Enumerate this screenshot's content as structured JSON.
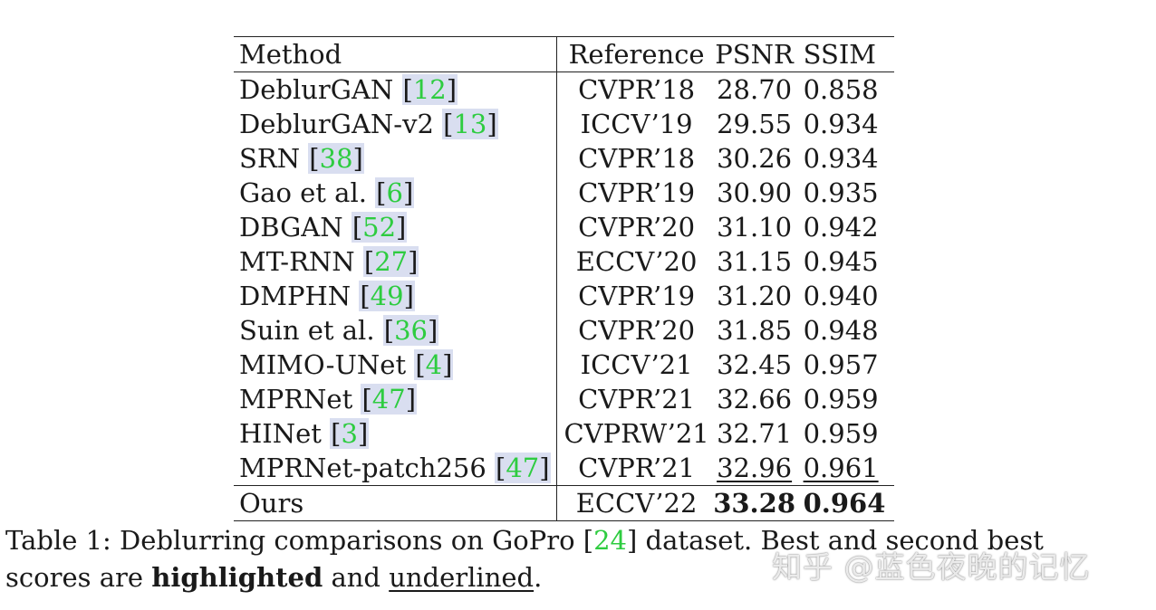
{
  "table": {
    "headers": {
      "method": "Method",
      "reference": "Reference",
      "psnr": "PSNR",
      "ssim": "SSIM"
    },
    "rows": [
      {
        "method": "DeblurGAN",
        "cite": "12",
        "reference": "CVPR’18",
        "psnr": "28.70",
        "ssim": "0.858"
      },
      {
        "method": "DeblurGAN-v2",
        "cite": "13",
        "reference": "ICCV’19",
        "psnr": "29.55",
        "ssim": "0.934"
      },
      {
        "method": "SRN",
        "cite": "38",
        "reference": "CVPR’18",
        "psnr": "30.26",
        "ssim": "0.934"
      },
      {
        "method": "Gao et al.",
        "cite": "6",
        "reference": "CVPR’19",
        "psnr": "30.90",
        "ssim": "0.935"
      },
      {
        "method": "DBGAN",
        "cite": "52",
        "reference": "CVPR’20",
        "psnr": "31.10",
        "ssim": "0.942"
      },
      {
        "method": "MT-RNN",
        "cite": "27",
        "reference": "ECCV’20",
        "psnr": "31.15",
        "ssim": "0.945"
      },
      {
        "method": "DMPHN",
        "cite": "49",
        "reference": "CVPR’19",
        "psnr": "31.20",
        "ssim": "0.940"
      },
      {
        "method": "Suin et al.",
        "cite": "36",
        "reference": "CVPR’20",
        "psnr": "31.85",
        "ssim": "0.948"
      },
      {
        "method": "MIMO-UNet",
        "cite": "4",
        "reference": "ICCV’21",
        "psnr": "32.45",
        "ssim": "0.957"
      },
      {
        "method": "MPRNet",
        "cite": "47",
        "reference": "CVPR’21",
        "psnr": "32.66",
        "ssim": "0.959"
      },
      {
        "method": "HINet",
        "cite": "3",
        "reference": "CVPRW’21",
        "psnr": "32.71",
        "ssim": "0.959"
      },
      {
        "method": "MPRNet-patch256",
        "cite": "47",
        "reference": "CVPR’21",
        "psnr": "32.96",
        "ssim": "0.961"
      }
    ],
    "ours": {
      "method": "Ours",
      "reference": "ECCV’22",
      "psnr": "33.28",
      "ssim": "0.964"
    }
  },
  "caption": {
    "part1": "Table 1: Deblurring comparisons on GoPro ",
    "cite": "24",
    "part2": " dataset. Best and second best",
    "part3": "scores are ",
    "highlighted": "highlighted",
    "part4": " and ",
    "underlined": "underlined",
    "part5": "."
  },
  "watermark": "知乎 @蓝色夜晚的记忆"
}
